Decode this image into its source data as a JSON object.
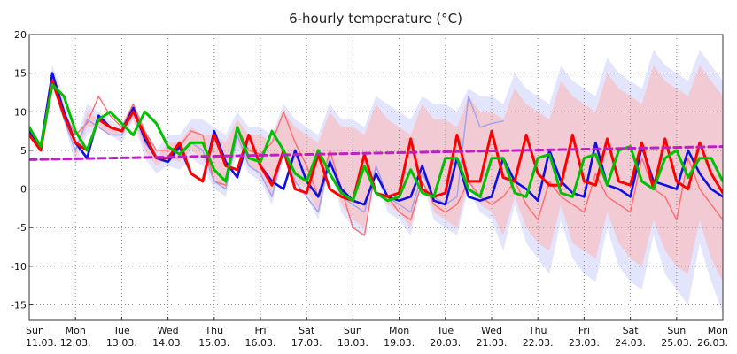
{
  "chart_data": {
    "type": "line",
    "title": "6-hourly temperature (°C)",
    "xlabel": "",
    "ylabel": "",
    "ylim": [
      -17,
      20
    ],
    "yticks": [
      20,
      15,
      10,
      5,
      0,
      -5,
      -10,
      -15
    ],
    "grid": true,
    "legend": "none",
    "x_ticks": [
      {
        "day": "Sun",
        "date": "11.03."
      },
      {
        "day": "Mon",
        "date": "12.03."
      },
      {
        "day": "Tue",
        "date": "13.03."
      },
      {
        "day": "Wed",
        "date": "14.03."
      },
      {
        "day": "Thu",
        "date": "15.03."
      },
      {
        "day": "Fri",
        "date": "16.03."
      },
      {
        "day": "Sat",
        "date": "17.03."
      },
      {
        "day": "Sun",
        "date": "18.03."
      },
      {
        "day": "Mon",
        "date": "19.03."
      },
      {
        "day": "Tue",
        "date": "20.03."
      },
      {
        "day": "Wed",
        "date": "21.03."
      },
      {
        "day": "Thu",
        "date": "22.03."
      },
      {
        "day": "Fri",
        "date": "23.03."
      },
      {
        "day": "Sat",
        "date": "24.03."
      },
      {
        "day": "Sun",
        "date": "25.03."
      },
      {
        "day": "Mon",
        "date": "26.03."
      }
    ],
    "x_unit_note": "x in days after 11.03. 00:00, 6-hourly steps",
    "bands": [
      {
        "color": "#dde0fb",
        "x": [
          0,
          0.25,
          0.5,
          0.75,
          1,
          1.25,
          1.5,
          1.75,
          2,
          2.25,
          2.5,
          2.75,
          3,
          3.25,
          3.5,
          3.75,
          4,
          4.25,
          4.5,
          4.75,
          5,
          5.25,
          5.5,
          5.75,
          6,
          6.25,
          6.5,
          6.75,
          7,
          7.25,
          7.5,
          7.75,
          8,
          8.25,
          8.5,
          8.75,
          9,
          9.25,
          9.5,
          9.75,
          10,
          10.25,
          10.5,
          10.75,
          11,
          11.25,
          11.5,
          11.75,
          12,
          12.25,
          12.5,
          12.75,
          13,
          13.25,
          13.5,
          13.75,
          14,
          14.25,
          14.5,
          14.75,
          15
        ],
        "low": [
          7,
          5,
          13,
          9,
          3,
          7,
          8,
          7,
          6,
          9,
          4,
          2,
          3,
          2.5,
          4,
          3,
          0,
          -1,
          5,
          2,
          1,
          -2,
          4,
          0,
          -1,
          -4,
          3,
          -3,
          -5,
          -6,
          2,
          -3,
          -4,
          -6,
          1,
          -4,
          -5,
          -6,
          0,
          -3,
          -4,
          -8,
          -2,
          -7,
          -9,
          -11,
          -4,
          -9,
          -11,
          -12,
          -5,
          -10,
          -12,
          -13,
          -6,
          -11,
          -13,
          -15,
          -7,
          -12,
          -16
        ],
        "high": [
          8,
          6,
          16,
          12,
          6,
          11,
          10,
          9,
          8,
          11,
          7,
          5,
          7,
          7,
          9,
          9,
          8,
          7,
          10,
          8,
          8,
          7,
          11,
          9,
          8,
          7,
          11,
          9,
          9,
          8,
          12,
          11,
          10,
          9,
          12,
          11,
          11,
          10,
          13,
          12,
          12,
          11,
          15,
          13,
          12,
          11,
          16,
          14,
          13,
          12,
          17,
          15,
          14,
          13,
          18,
          16,
          15,
          14,
          18,
          16,
          14
        ]
      },
      {
        "color": "#f4c6cc",
        "x": [
          0,
          0.25,
          0.5,
          0.75,
          1,
          1.25,
          1.5,
          1.75,
          2,
          2.25,
          2.5,
          2.75,
          3,
          3.25,
          3.5,
          3.75,
          4,
          4.25,
          4.5,
          4.75,
          5,
          5.25,
          5.5,
          5.75,
          6,
          6.25,
          6.5,
          6.75,
          7,
          7.25,
          7.5,
          7.75,
          8,
          8.25,
          8.5,
          8.75,
          9,
          9.25,
          9.5,
          9.75,
          10,
          10.25,
          10.5,
          10.75,
          11,
          11.25,
          11.5,
          11.75,
          12,
          12.25,
          12.5,
          12.75,
          13,
          13.25,
          13.5,
          13.75,
          14,
          14.25,
          14.5,
          14.75,
          15
        ],
        "low": [
          7,
          5,
          14,
          10,
          4,
          8,
          8,
          7,
          7,
          9,
          5,
          3,
          4,
          3.5,
          5,
          4,
          1,
          0,
          6,
          3,
          2,
          -1,
          5,
          1,
          0,
          -3,
          4,
          -2,
          -4,
          -5,
          3,
          -2,
          -3,
          -5,
          2,
          -3,
          -4,
          -5,
          1,
          -2,
          -3,
          -6,
          -1,
          -5,
          -7,
          -8,
          -2,
          -7,
          -8,
          -9,
          -3,
          -7,
          -9,
          -10,
          -4,
          -8,
          -10,
          -11,
          -4,
          -9,
          -12
        ],
        "high": [
          8,
          6,
          15,
          11,
          5,
          10,
          9,
          8,
          7,
          10,
          6,
          4,
          6,
          6,
          8,
          7,
          7,
          6,
          9,
          7,
          7,
          6,
          10,
          8,
          7,
          6,
          10,
          8,
          8,
          7,
          11,
          9,
          8,
          7,
          11,
          9,
          9,
          8,
          12,
          10,
          10,
          9,
          13,
          11,
          10,
          9,
          14,
          12,
          11,
          10,
          15,
          13,
          12,
          11,
          16,
          14,
          13,
          12,
          16,
          14,
          12
        ]
      }
    ],
    "series": [
      {
        "color": "#ff6c6c",
        "width": 1.4,
        "x": [
          0,
          0.25,
          0.5,
          0.75,
          1,
          1.25,
          1.5,
          1.75,
          2,
          2.25,
          2.5,
          2.75,
          3,
          3.25,
          3.5,
          3.75,
          4,
          4.25,
          4.5,
          4.75,
          5,
          5.25,
          5.5,
          5.75,
          6,
          6.25,
          6.5,
          6.75,
          7,
          7.25,
          7.5,
          7.75,
          8,
          8.25,
          8.5,
          8.75,
          9,
          9.25,
          9.5,
          9.75,
          10,
          10.25,
          10.5,
          10.75,
          11,
          11.25,
          11.5,
          11.75,
          12,
          12.25,
          12.5,
          12.75,
          13,
          13.25,
          13.5,
          13.75,
          14,
          14.25,
          14.5,
          14.75,
          15
        ],
        "y": [
          7,
          5.5,
          14,
          10,
          7,
          8.5,
          12,
          9.5,
          8,
          11,
          7.5,
          5,
          5,
          5.5,
          7.5,
          7,
          1,
          0.5,
          8,
          5,
          4.5,
          6,
          10,
          6,
          3,
          -1,
          5,
          0,
          -5,
          -6,
          3,
          -1,
          -3,
          -4,
          1,
          -2,
          -3,
          -2,
          1,
          -1,
          -2,
          -1,
          1,
          -2,
          -4,
          1,
          -1,
          -2,
          -3,
          2,
          -1,
          -2,
          -3,
          4,
          0,
          -1,
          -4,
          4,
          0,
          -2,
          -4
        ]
      },
      {
        "color": "#a0a0f0",
        "width": 1.4,
        "x": [
          0,
          0.25,
          0.5,
          0.75,
          1,
          1.25,
          1.5,
          1.75,
          2,
          2.25,
          2.5,
          2.75,
          3,
          3.25,
          3.5,
          3.75,
          4,
          4.25,
          4.5,
          4.75,
          5,
          5.25,
          5.5,
          5.75,
          6,
          6.25,
          6.5,
          6.75,
          7,
          7.25,
          7.5,
          7.75,
          8,
          8.25,
          8.5,
          8.75,
          9,
          9.25,
          9.5,
          9.75,
          10,
          10.25
        ],
        "y": [
          7,
          5,
          14,
          9,
          5,
          9,
          8,
          7,
          7,
          10,
          6,
          4,
          4,
          4,
          6,
          5,
          1,
          0,
          7,
          3,
          2,
          -1,
          5,
          1,
          -1,
          -3,
          4,
          -1,
          -2,
          -3,
          3,
          -1,
          -2,
          -3,
          2,
          -1,
          -2,
          -1,
          12,
          8,
          8.5,
          8.8
        ]
      },
      {
        "color": "#1010e0",
        "width": 2.6,
        "x": [
          0,
          0.25,
          0.5,
          0.75,
          1,
          1.25,
          1.5,
          1.75,
          2,
          2.25,
          2.5,
          2.75,
          3,
          3.25,
          3.5,
          3.75,
          4,
          4.25,
          4.5,
          4.75,
          5,
          5.25,
          5.5,
          5.75,
          6,
          6.25,
          6.5,
          6.75,
          7,
          7.25,
          7.5,
          7.75,
          8,
          8.25,
          8.5,
          8.75,
          9,
          9.25,
          9.5,
          9.75,
          10,
          10.25,
          10.5,
          10.75,
          11,
          11.25,
          11.5,
          11.75,
          12,
          12.25,
          12.5,
          12.75,
          13,
          13.25,
          13.5,
          13.75,
          14,
          14.25,
          14.5,
          14.75,
          15
        ],
        "y": [
          7.5,
          5.5,
          15,
          10,
          6,
          4,
          9.5,
          8,
          7.5,
          10.5,
          6.5,
          4,
          3.5,
          5.5,
          2,
          1,
          7.5,
          3.5,
          1.5,
          7,
          3,
          1,
          0,
          5,
          1,
          -1,
          3.5,
          0,
          -1.5,
          -2,
          2,
          -1,
          -1.5,
          -1,
          3,
          -1.5,
          -2,
          4,
          -1,
          -1.5,
          -1,
          4,
          1,
          0,
          -1.5,
          5,
          1,
          -0.5,
          -1,
          6,
          0.5,
          0,
          -1,
          5.5,
          1,
          0.5,
          0,
          5,
          2,
          0,
          -1
        ]
      },
      {
        "color": "#ff0000",
        "width": 3,
        "x": [
          0,
          0.25,
          0.5,
          0.75,
          1,
          1.25,
          1.5,
          1.75,
          2,
          2.25,
          2.5,
          2.75,
          3,
          3.25,
          3.5,
          3.75,
          4,
          4.25,
          4.5,
          4.75,
          5,
          5.25,
          5.5,
          5.75,
          6,
          6.25,
          6.5,
          6.75,
          7,
          7.25,
          7.5,
          7.75,
          8,
          8.25,
          8.5,
          8.75,
          9,
          9.25,
          9.5,
          9.75,
          10,
          10.25,
          10.5,
          10.75,
          11,
          11.25,
          11.5,
          11.75,
          12,
          12.25,
          12.5,
          12.75,
          13,
          13.25,
          13.5,
          13.75,
          14,
          14.25,
          14.5,
          14.75,
          15
        ],
        "y": [
          7,
          5,
          14,
          9.5,
          6,
          5,
          9,
          8,
          7.5,
          10,
          7,
          4,
          4,
          6,
          2,
          1,
          7,
          3,
          2.5,
          7,
          3,
          0.5,
          5,
          0,
          -0.5,
          4.5,
          0,
          -1,
          -1.5,
          4.5,
          -0.5,
          -1,
          -0.5,
          6.5,
          0,
          -1,
          -0.5,
          7,
          1,
          1,
          7.5,
          1.5,
          1,
          7,
          2,
          0.5,
          0.5,
          7,
          1,
          0.5,
          6.5,
          1,
          0.5,
          6,
          0,
          6.5,
          1,
          0,
          6,
          2,
          -0.5
        ]
      },
      {
        "color": "#00c000",
        "width": 3,
        "x": [
          0,
          0.25,
          0.5,
          0.75,
          1,
          1.25,
          1.5,
          1.75,
          2,
          2.25,
          2.5,
          2.75,
          3,
          3.25,
          3.5,
          3.75,
          4,
          4.25,
          4.5,
          4.75,
          5,
          5.25,
          5.5,
          5.75,
          6,
          6.25,
          6.5,
          6.75,
          7,
          7.25,
          7.5,
          7.75,
          8,
          8.25,
          8.5,
          8.75,
          9,
          9.25,
          9.5,
          9.75,
          10,
          10.25,
          10.5,
          10.75,
          11,
          11.25,
          11.5,
          11.75,
          12,
          12.25,
          12.5,
          12.75,
          13,
          13.25,
          13.5,
          13.75,
          14,
          14.25,
          14.5,
          14.75,
          15
        ],
        "y": [
          8,
          5.5,
          13.5,
          12,
          7.5,
          5,
          9,
          10,
          8.5,
          7,
          10,
          8.5,
          5.5,
          4.5,
          6,
          6,
          2.5,
          1,
          8,
          4,
          3.5,
          7.5,
          5,
          2,
          1,
          5,
          2,
          -0.5,
          -1.5,
          3,
          -0.5,
          -1.5,
          -1,
          2.5,
          -0.5,
          -1,
          4,
          4,
          0,
          -1,
          4,
          4,
          -0.5,
          -1,
          4,
          4.5,
          -0.5,
          -1,
          4,
          4.5,
          0.5,
          5,
          5.5,
          1,
          0,
          4,
          5,
          1.5,
          4,
          4,
          1
        ]
      },
      {
        "color": "#c020c0",
        "width": 3,
        "dashed": true,
        "x": [
          0,
          15
        ],
        "y": [
          3.8,
          5.5
        ]
      }
    ]
  }
}
